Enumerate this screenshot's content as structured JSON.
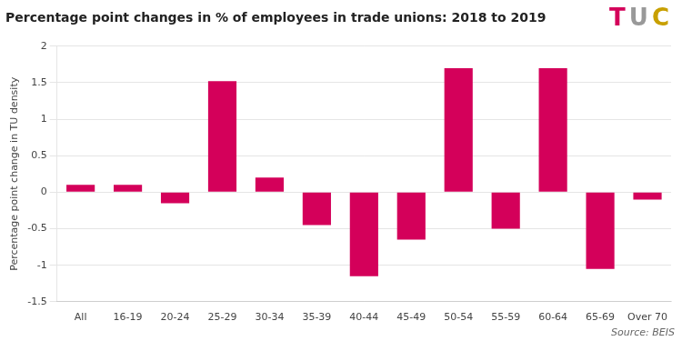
{
  "chart_data": {
    "type": "bar",
    "title": "Percentage point changes in % of employees in trade unions: 2018 to 2019",
    "ylabel": "Percentage point change in TU density",
    "categories": [
      "All",
      "16-19",
      "20-24",
      "25-29",
      "30-34",
      "35-39",
      "40-44",
      "45-49",
      "50-54",
      "55-59",
      "60-64",
      "65-69",
      "Over 70"
    ],
    "values": [
      0.1,
      0.1,
      -0.15,
      1.52,
      0.2,
      -0.45,
      -1.15,
      -0.65,
      1.7,
      -0.5,
      1.7,
      -1.05,
      -0.1
    ],
    "color": "#D4005A",
    "ylim": [
      -1.5,
      2
    ],
    "yticks": [
      -1.5,
      -1,
      -0.5,
      0,
      0.5,
      1,
      1.5,
      2
    ],
    "grid": true,
    "annotations": [
      {
        "text": "Source: BEIS"
      },
      {
        "text": "T",
        "color": "#D4005A"
      },
      {
        "text": "U",
        "color": "#999999"
      },
      {
        "text": "C",
        "color": "#C8A000"
      }
    ]
  }
}
